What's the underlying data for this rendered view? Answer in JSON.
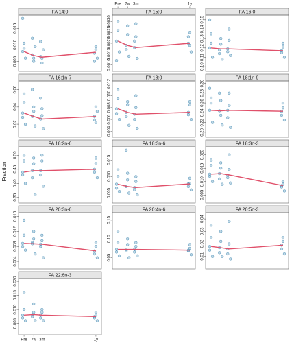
{
  "y_label": "Fraction",
  "xlim": [
    -4,
    56
  ],
  "xticks": [
    {
      "value": 0,
      "label": "Pre"
    },
    {
      "value": 7,
      "label": "7w"
    },
    {
      "value": 13,
      "label": "3m"
    },
    {
      "value": 52,
      "label": "1y"
    }
  ],
  "x": [
    -1,
    0,
    1,
    0,
    -1,
    6,
    7,
    8,
    7,
    6,
    12,
    13,
    14,
    13,
    12,
    51,
    52,
    53,
    52,
    51
  ],
  "trend_x": [
    0,
    7,
    13,
    52
  ],
  "point_color": "#4f92b8",
  "trend_color": "#e0506a",
  "chart_data": [
    {
      "type": "scatter",
      "title": "FA 14:0",
      "ylim": [
        0.002,
        0.019
      ],
      "yticks": [
        0.005,
        {
          "value": 0.01,
          "label": "0.010"
        },
        0.015
      ],
      "values": [
        0.008,
        0.0105,
        0.006,
        0.009,
        0.018,
        0.007,
        0.005,
        0.0095,
        0.006,
        0.012,
        0.0065,
        0.0045,
        0.0085,
        0.006,
        0.011,
        0.0075,
        0.0095,
        0.006,
        0.0085,
        0.005
      ],
      "trend": [
        0.008,
        0.0068,
        0.0063,
        0.0078
      ]
    },
    {
      "type": "scatter",
      "title": "FA 15:0",
      "ylim": [
        0.0007,
        0.0033
      ],
      "yticks": [
        {
          "value": 0.001,
          "label": "0.0010"
        },
        0.0015,
        {
          "value": 0.002,
          "label": "0.0020"
        },
        0.0025,
        {
          "value": 0.003,
          "label": "0.0030"
        }
      ],
      "values": [
        0.0021,
        0.0026,
        0.0016,
        0.003,
        0.0012,
        0.0019,
        0.0024,
        0.0014,
        0.0028,
        0.0017,
        0.0018,
        0.0023,
        0.0013,
        0.0029,
        0.0021,
        0.002,
        0.0025,
        0.0016,
        0.0019,
        0.0023
      ],
      "trend": [
        0.0021,
        0.0019,
        0.0018,
        0.002
      ]
    },
    {
      "type": "scatter",
      "title": "FA 16:0",
      "ylim": [
        0.095,
        0.155
      ],
      "yticks": [
        {
          "value": 0.1,
          "label": "0.10"
        },
        0.11,
        0.12,
        0.13,
        0.14,
        0.15
      ],
      "values": [
        0.12,
        0.135,
        0.11,
        0.125,
        0.15,
        0.118,
        0.13,
        0.108,
        0.124,
        0.114,
        0.119,
        0.128,
        0.112,
        0.14,
        0.116,
        0.117,
        0.125,
        0.11,
        0.121,
        0.115
      ],
      "trend": [
        0.12,
        0.119,
        0.119,
        0.117
      ]
    },
    {
      "type": "scatter",
      "title": "FA 16:1n-7",
      "ylim": [
        0.005,
        0.07
      ],
      "yticks": [
        0.02,
        0.04,
        0.06
      ],
      "values": [
        0.033,
        0.045,
        0.02,
        0.055,
        0.028,
        0.029,
        0.04,
        0.018,
        0.035,
        0.06,
        0.026,
        0.038,
        0.015,
        0.03,
        0.05,
        0.029,
        0.022,
        0.035,
        0.04,
        0.025
      ],
      "trend": [
        0.033,
        0.029,
        0.026,
        0.029
      ]
    },
    {
      "type": "scatter",
      "title": "FA 18:0",
      "ylim": [
        0.003,
        0.0125
      ],
      "yticks": [
        0.004,
        0.006,
        0.008,
        {
          "value": 0.01,
          "label": "0.010"
        },
        0.012
      ],
      "values": [
        0.0078,
        0.0095,
        0.006,
        0.011,
        0.007,
        0.0072,
        0.009,
        0.005,
        0.0085,
        0.0065,
        0.0069,
        0.01,
        0.0045,
        0.008,
        0.006,
        0.0072,
        0.0085,
        0.006,
        0.009,
        0.0068
      ],
      "trend": [
        0.0078,
        0.0072,
        0.0069,
        0.0072
      ]
    },
    {
      "type": "scatter",
      "title": "FA 18:1n-9",
      "ylim": [
        0.19,
        0.305
      ],
      "yticks": [
        {
          "value": 0.2,
          "label": "0.20"
        },
        0.22,
        0.24,
        0.26,
        0.28,
        {
          "value": 0.3,
          "label": "0.30"
        }
      ],
      "values": [
        0.245,
        0.27,
        0.22,
        0.26,
        0.29,
        0.244,
        0.265,
        0.215,
        0.235,
        0.28,
        0.245,
        0.28,
        0.21,
        0.255,
        0.23,
        0.243,
        0.26,
        0.225,
        0.25,
        0.235
      ],
      "trend": [
        0.245,
        0.244,
        0.245,
        0.243
      ]
    },
    {
      "type": "scatter",
      "title": "FA 18:2n-6",
      "ylim": [
        0.33,
        0.53
      ],
      "yticks": [
        0.35,
        {
          "value": 0.4,
          "label": "0.40"
        },
        0.45,
        {
          "value": 0.5,
          "label": "0.50"
        }
      ],
      "values": [
        0.44,
        0.48,
        0.4,
        0.5,
        0.43,
        0.445,
        0.47,
        0.36,
        0.49,
        0.42,
        0.445,
        0.48,
        0.39,
        0.5,
        0.43,
        0.45,
        0.47,
        0.42,
        0.49,
        0.44
      ],
      "trend": [
        0.44,
        0.445,
        0.445,
        0.45
      ]
    },
    {
      "type": "scatter",
      "title": "FA 18:3n-6",
      "ylim": [
        0.002,
        0.019
      ],
      "yticks": [
        0.005,
        {
          "value": 0.01,
          "label": "0.010"
        },
        0.015
      ],
      "values": [
        0.0077,
        0.01,
        0.0055,
        0.012,
        0.0065,
        0.007,
        0.009,
        0.005,
        0.011,
        0.018,
        0.0067,
        0.0085,
        0.0045,
        0.01,
        0.006,
        0.0078,
        0.0095,
        0.006,
        0.008,
        0.007
      ],
      "trend": [
        0.0077,
        0.007,
        0.0067,
        0.0078
      ]
    },
    {
      "type": "scatter",
      "title": "FA 18:3n-3",
      "ylim": [
        0.002,
        0.023
      ],
      "yticks": [
        0.005,
        {
          "value": 0.01,
          "label": "0.010"
        },
        0.015,
        {
          "value": 0.02,
          "label": "0.020"
        }
      ],
      "values": [
        0.0128,
        0.016,
        0.01,
        0.018,
        0.012,
        0.013,
        0.015,
        0.009,
        0.017,
        0.011,
        0.0125,
        0.0145,
        0.0095,
        0.02,
        0.0115,
        0.0085,
        0.01,
        0.0065,
        0.009,
        0.008
      ],
      "trend": [
        0.0128,
        0.013,
        0.0125,
        0.0085
      ]
    },
    {
      "type": "scatter",
      "title": "FA 20:3n-6",
      "ylim": [
        0.002,
        0.017
      ],
      "yticks": [
        0.004,
        0.008,
        0.012,
        0.016
      ],
      "values": [
        0.0088,
        0.011,
        0.007,
        0.015,
        0.008,
        0.0087,
        0.012,
        0.006,
        0.01,
        0.009,
        0.0086,
        0.011,
        0.005,
        0.0095,
        0.008,
        0.0068,
        0.008,
        0.005,
        0.009,
        0.006
      ],
      "trend": [
        0.0088,
        0.0087,
        0.0086,
        0.0068
      ]
    },
    {
      "type": "scatter",
      "title": "FA 20:4n-6",
      "ylim": [
        0.02,
        0.17
      ],
      "yticks": [
        0.05,
        {
          "value": 0.1,
          "label": "0.10"
        },
        0.15
      ],
      "values": [
        0.072,
        0.09,
        0.055,
        0.12,
        0.065,
        0.072,
        0.085,
        0.05,
        0.1,
        0.068,
        0.072,
        0.09,
        0.055,
        0.08,
        0.065,
        0.07,
        0.085,
        0.058,
        0.075,
        0.068
      ],
      "trend": [
        0.072,
        0.072,
        0.072,
        0.07
      ]
    },
    {
      "type": "scatter",
      "title": "FA 20:5n-3",
      "ylim": [
        0,
        0.045
      ],
      "yticks": [
        0.01,
        0.02,
        0.03,
        0.04
      ],
      "values": [
        0.018,
        0.025,
        0.01,
        0.035,
        0.015,
        0.017,
        0.022,
        0.01,
        0.03,
        0.013,
        0.016,
        0.02,
        0.008,
        0.038,
        0.012,
        0.019,
        0.025,
        0.012,
        0.022,
        0.016
      ],
      "trend": [
        0.018,
        0.017,
        0.016,
        0.019
      ]
    },
    {
      "type": "scatter",
      "title": "FA 22:6n-3",
      "ylim": [
        0.001,
        0.021
      ],
      "yticks": [
        0.005,
        {
          "value": 0.01,
          "label": "0.010"
        },
        0.015,
        {
          "value": 0.02,
          "label": "0.020"
        }
      ],
      "values": [
        0.008,
        0.01,
        0.006,
        0.016,
        0.007,
        0.0082,
        0.012,
        0.006,
        0.009,
        0.0075,
        0.008,
        0.01,
        0.006,
        0.009,
        0.007,
        0.0075,
        0.009,
        0.006,
        0.008,
        0.007
      ],
      "trend": [
        0.008,
        0.0082,
        0.008,
        0.0075
      ]
    }
  ]
}
